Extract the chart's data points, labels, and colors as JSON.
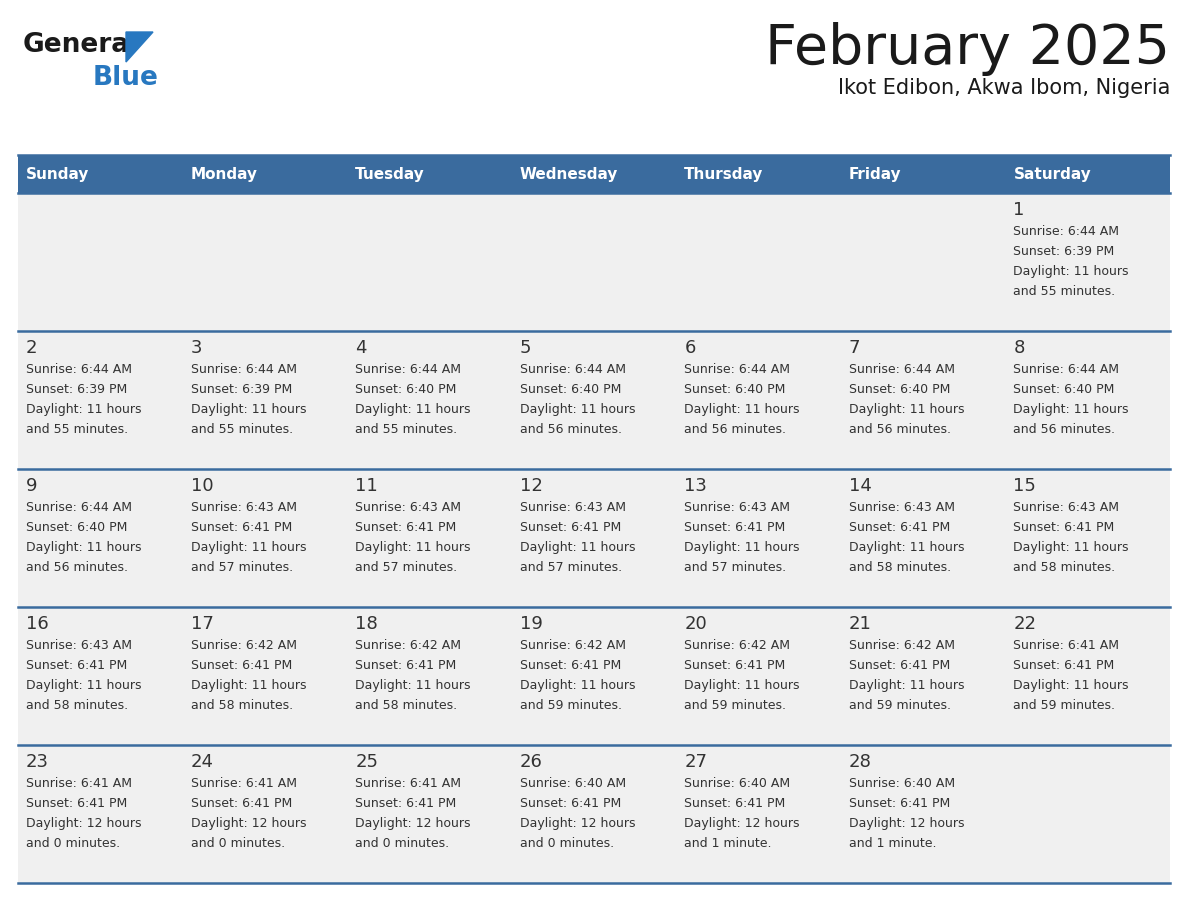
{
  "title": "February 2025",
  "subtitle": "Ikot Edibon, Akwa Ibom, Nigeria",
  "days_of_week": [
    "Sunday",
    "Monday",
    "Tuesday",
    "Wednesday",
    "Thursday",
    "Friday",
    "Saturday"
  ],
  "header_bg": "#3a6b9e",
  "header_text": "#ffffff",
  "cell_bg": "#f0f0f0",
  "line_color": "#3a6b9e",
  "text_color": "#333333",
  "title_color": "#1a1a1a",
  "logo_general_color": "#1a1a1a",
  "logo_blue_color": "#2878c0",
  "calendar": [
    [
      null,
      null,
      null,
      null,
      null,
      null,
      1
    ],
    [
      2,
      3,
      4,
      5,
      6,
      7,
      8
    ],
    [
      9,
      10,
      11,
      12,
      13,
      14,
      15
    ],
    [
      16,
      17,
      18,
      19,
      20,
      21,
      22
    ],
    [
      23,
      24,
      25,
      26,
      27,
      28,
      null
    ]
  ],
  "day_data": {
    "1": {
      "sunrise": "6:44 AM",
      "sunset": "6:39 PM",
      "daylight_h": "11 hours",
      "daylight_m": "55 minutes"
    },
    "2": {
      "sunrise": "6:44 AM",
      "sunset": "6:39 PM",
      "daylight_h": "11 hours",
      "daylight_m": "55 minutes"
    },
    "3": {
      "sunrise": "6:44 AM",
      "sunset": "6:39 PM",
      "daylight_h": "11 hours",
      "daylight_m": "55 minutes"
    },
    "4": {
      "sunrise": "6:44 AM",
      "sunset": "6:40 PM",
      "daylight_h": "11 hours",
      "daylight_m": "55 minutes"
    },
    "5": {
      "sunrise": "6:44 AM",
      "sunset": "6:40 PM",
      "daylight_h": "11 hours",
      "daylight_m": "56 minutes"
    },
    "6": {
      "sunrise": "6:44 AM",
      "sunset": "6:40 PM",
      "daylight_h": "11 hours",
      "daylight_m": "56 minutes"
    },
    "7": {
      "sunrise": "6:44 AM",
      "sunset": "6:40 PM",
      "daylight_h": "11 hours",
      "daylight_m": "56 minutes"
    },
    "8": {
      "sunrise": "6:44 AM",
      "sunset": "6:40 PM",
      "daylight_h": "11 hours",
      "daylight_m": "56 minutes"
    },
    "9": {
      "sunrise": "6:44 AM",
      "sunset": "6:40 PM",
      "daylight_h": "11 hours",
      "daylight_m": "56 minutes"
    },
    "10": {
      "sunrise": "6:43 AM",
      "sunset": "6:41 PM",
      "daylight_h": "11 hours",
      "daylight_m": "57 minutes"
    },
    "11": {
      "sunrise": "6:43 AM",
      "sunset": "6:41 PM",
      "daylight_h": "11 hours",
      "daylight_m": "57 minutes"
    },
    "12": {
      "sunrise": "6:43 AM",
      "sunset": "6:41 PM",
      "daylight_h": "11 hours",
      "daylight_m": "57 minutes"
    },
    "13": {
      "sunrise": "6:43 AM",
      "sunset": "6:41 PM",
      "daylight_h": "11 hours",
      "daylight_m": "57 minutes"
    },
    "14": {
      "sunrise": "6:43 AM",
      "sunset": "6:41 PM",
      "daylight_h": "11 hours",
      "daylight_m": "58 minutes"
    },
    "15": {
      "sunrise": "6:43 AM",
      "sunset": "6:41 PM",
      "daylight_h": "11 hours",
      "daylight_m": "58 minutes"
    },
    "16": {
      "sunrise": "6:43 AM",
      "sunset": "6:41 PM",
      "daylight_h": "11 hours",
      "daylight_m": "58 minutes"
    },
    "17": {
      "sunrise": "6:42 AM",
      "sunset": "6:41 PM",
      "daylight_h": "11 hours",
      "daylight_m": "58 minutes"
    },
    "18": {
      "sunrise": "6:42 AM",
      "sunset": "6:41 PM",
      "daylight_h": "11 hours",
      "daylight_m": "58 minutes"
    },
    "19": {
      "sunrise": "6:42 AM",
      "sunset": "6:41 PM",
      "daylight_h": "11 hours",
      "daylight_m": "59 minutes"
    },
    "20": {
      "sunrise": "6:42 AM",
      "sunset": "6:41 PM",
      "daylight_h": "11 hours",
      "daylight_m": "59 minutes"
    },
    "21": {
      "sunrise": "6:42 AM",
      "sunset": "6:41 PM",
      "daylight_h": "11 hours",
      "daylight_m": "59 minutes"
    },
    "22": {
      "sunrise": "6:41 AM",
      "sunset": "6:41 PM",
      "daylight_h": "11 hours",
      "daylight_m": "59 minutes"
    },
    "23": {
      "sunrise": "6:41 AM",
      "sunset": "6:41 PM",
      "daylight_h": "12 hours",
      "daylight_m": "0 minutes"
    },
    "24": {
      "sunrise": "6:41 AM",
      "sunset": "6:41 PM",
      "daylight_h": "12 hours",
      "daylight_m": "0 minutes"
    },
    "25": {
      "sunrise": "6:41 AM",
      "sunset": "6:41 PM",
      "daylight_h": "12 hours",
      "daylight_m": "0 minutes"
    },
    "26": {
      "sunrise": "6:40 AM",
      "sunset": "6:41 PM",
      "daylight_h": "12 hours",
      "daylight_m": "0 minutes"
    },
    "27": {
      "sunrise": "6:40 AM",
      "sunset": "6:41 PM",
      "daylight_h": "12 hours",
      "daylight_m": "1 minute"
    },
    "28": {
      "sunrise": "6:40 AM",
      "sunset": "6:41 PM",
      "daylight_h": "12 hours",
      "daylight_m": "1 minute"
    }
  }
}
